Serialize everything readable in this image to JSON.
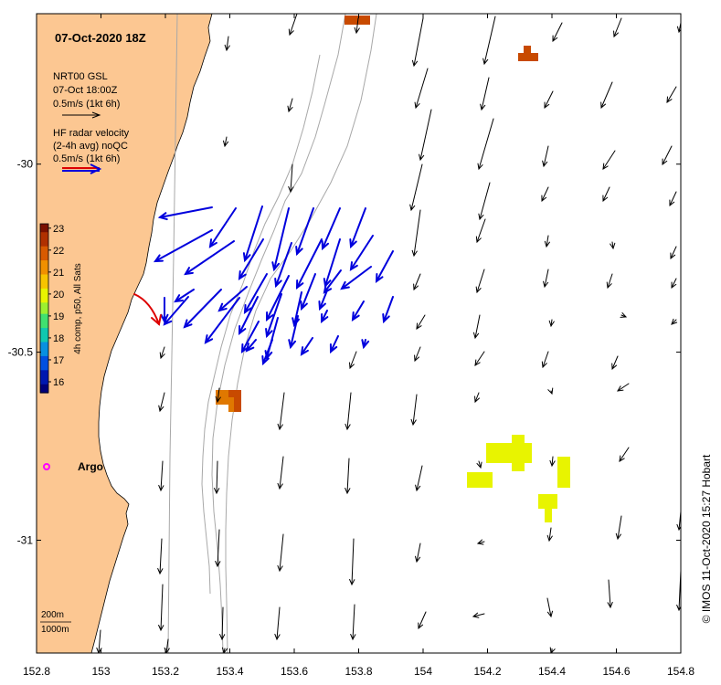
{
  "map": {
    "title": "07-Oct-2020 18Z",
    "lon_ticks": [
      "152.8",
      "153",
      "153.2",
      "153.4",
      "153.6",
      "153.8",
      "154",
      "154.2",
      "154.4",
      "154.6",
      "154.8"
    ],
    "lat_ticks": [
      "-30",
      "-30.5",
      "-31"
    ],
    "lon_range": [
      152.8,
      154.8
    ],
    "lat_range": [
      -29.6,
      -31.3
    ]
  },
  "legend": {
    "model_line1": "NRT00 GSL",
    "model_line2": "07-Oct 18:00Z",
    "model_scale": "0.5m/s (1kt 6h)",
    "radar_line1": "HF radar velocity",
    "radar_line2": "(2-4h avg) noQC",
    "radar_scale": "0.5m/s (1kt 6h)"
  },
  "colorbar": {
    "label": "4h comp, p50, All Sats",
    "ticks": [
      "23",
      "22",
      "21",
      "20",
      "19",
      "18",
      "17",
      "16"
    ],
    "min": 15.5,
    "max": 23.2
  },
  "argo": {
    "label": "Argo",
    "color": "#ff00ff"
  },
  "depth": {
    "line1": "200m",
    "line2": "1000m"
  },
  "credit": "© IMOS 11-Oct-2020 15:27 Hobart",
  "colors": {
    "land": "#fcc792",
    "model_arrow": "#000000",
    "radar_arrow": "#0000dd",
    "highlight_arrow": "#dd0000",
    "sst_warm": "#e07800",
    "sst_hot": "#c84a00",
    "sst_mid": "#e8f400"
  }
}
